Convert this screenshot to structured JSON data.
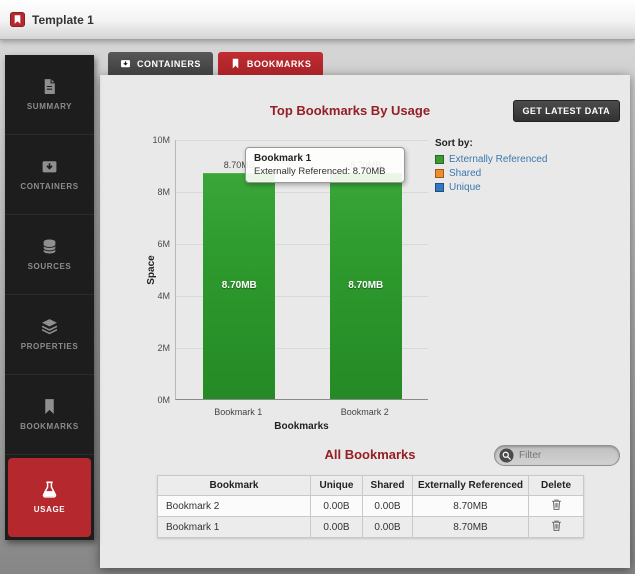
{
  "window": {
    "title": "Template 1"
  },
  "sidebar": {
    "items": [
      {
        "label": "SUMMARY",
        "icon": "summary-document-icon",
        "active": false
      },
      {
        "label": "CONTAINERS",
        "icon": "containers-box-icon",
        "active": false
      },
      {
        "label": "SOURCES",
        "icon": "sources-database-icon",
        "active": false
      },
      {
        "label": "PROPERTIES",
        "icon": "properties-layers-icon",
        "active": false
      },
      {
        "label": "BOOKMARKS",
        "icon": "bookmarks-ribbon-icon",
        "active": false
      },
      {
        "label": "USAGE",
        "icon": "usage-flask-icon",
        "active": true
      }
    ]
  },
  "tabs": [
    {
      "label": "CONTAINERS",
      "icon": "containers-box-icon",
      "active": false
    },
    {
      "label": "BOOKMARKS",
      "icon": "bookmarks-ribbon-icon",
      "active": true
    }
  ],
  "main": {
    "chart_title": "Top Bookmarks By Usage",
    "get_latest_button": "GET LATEST DATA",
    "tooltip": {
      "title": "Bookmark 1",
      "text": "Externally Referenced: 8.70MB"
    },
    "legend": {
      "title": "Sort by:",
      "items": [
        {
          "label": "Externally Referenced",
          "color": "#3d9b35"
        },
        {
          "label": "Shared",
          "color": "#ef8d2c"
        },
        {
          "label": "Unique",
          "color": "#3179c0"
        }
      ]
    }
  },
  "chart_data": {
    "type": "bar",
    "title": "Top Bookmarks By Usage",
    "categories": [
      "Bookmark 1",
      "Bookmark 2"
    ],
    "series": [
      {
        "name": "Externally Referenced",
        "values": [
          8.7,
          8.7
        ]
      }
    ],
    "bar_value_labels": [
      "8.70MB",
      "8.70MB"
    ],
    "bar_top_labels": [
      "8.70MB",
      "8.70MB"
    ],
    "xlabel": "Bookmarks",
    "ylabel": "Space",
    "ylim": [
      0,
      10
    ],
    "yticks": [
      "0M",
      "2M",
      "4M",
      "6M",
      "8M",
      "10M"
    ],
    "unit": "MB",
    "bar_color": "#2e9b2e",
    "grid": true,
    "legend_position": "right"
  },
  "all_bookmarks": {
    "title": "All Bookmarks",
    "filter_placeholder": "Filter",
    "table": {
      "headers": [
        "Bookmark",
        "Unique",
        "Shared",
        "Externally Referenced",
        "Delete"
      ],
      "rows": [
        {
          "bookmark": "Bookmark 2",
          "unique": "0.00B",
          "shared": "0.00B",
          "externally_referenced": "8.70MB"
        },
        {
          "bookmark": "Bookmark 1",
          "unique": "0.00B",
          "shared": "0.00B",
          "externally_referenced": "8.70MB"
        }
      ]
    }
  },
  "colors": {
    "accent_red": "#b5282e",
    "title_maroon": "#941f24",
    "bar_green": "#2e9b2e",
    "legend_link_blue": "#3b78ad",
    "sidebar_bg": "#1d1d1d"
  }
}
